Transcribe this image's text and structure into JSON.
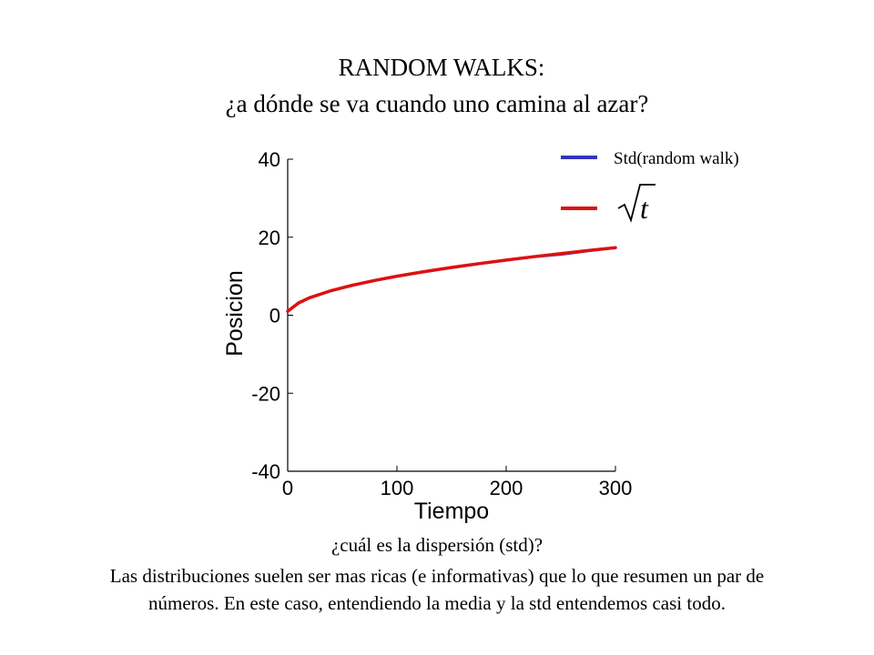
{
  "title": {
    "line1": "RANDOM WALKS:",
    "line2": "¿a dónde se va cuando uno camina al azar?"
  },
  "chart_data": {
    "type": "line",
    "xlabel": "Tiempo",
    "ylabel": "Posicion",
    "xlim": [
      0,
      300
    ],
    "ylim": [
      -40,
      40
    ],
    "xticks": [
      0,
      100,
      200,
      300
    ],
    "yticks": [
      -40,
      -20,
      0,
      20,
      40
    ],
    "grid": false,
    "legend_position": "top-right",
    "series": [
      {
        "name": "Std(random walk)",
        "color": "#3333bb",
        "x": [
          0,
          10,
          20,
          40,
          60,
          80,
          100,
          125,
          150,
          175,
          200,
          225,
          250,
          275,
          300
        ],
        "y": [
          1.0,
          3.2,
          4.5,
          6.3,
          7.7,
          8.9,
          10.0,
          11.2,
          12.2,
          13.2,
          14.1,
          15.0,
          15.6,
          16.5,
          17.3
        ]
      },
      {
        "name": "√t",
        "color": "#dd1111",
        "x": [
          0,
          10,
          20,
          40,
          60,
          80,
          100,
          125,
          150,
          175,
          200,
          225,
          250,
          275,
          300
        ],
        "y": [
          1.0,
          3.16,
          4.47,
          6.32,
          7.75,
          8.94,
          10.0,
          11.18,
          12.25,
          13.23,
          14.14,
          15.0,
          15.81,
          16.58,
          17.32
        ]
      }
    ]
  },
  "caption": {
    "line1": "¿cuál es la dispersión (std)?",
    "line2": "Las distribuciones suelen ser mas ricas (e informativas) que lo que resumen un par de",
    "line3": "números. En este caso, entendiendo la media y la std entendemos casi todo."
  }
}
